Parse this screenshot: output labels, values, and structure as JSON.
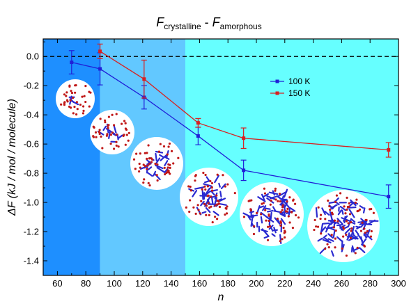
{
  "chart_data": {
    "type": "line",
    "title": {
      "part1_main": "F",
      "part1_sub": "crystalline",
      "separator": " - ",
      "part2_main": "F",
      "part2_sub": "amorphous"
    },
    "xlabel": "n",
    "ylabel": "ΔF (kJ / mol / molecule)",
    "xlim": [
      50,
      300
    ],
    "ylim": [
      -1.5,
      0.12
    ],
    "xticks": [
      60,
      80,
      100,
      120,
      140,
      160,
      180,
      200,
      220,
      240,
      260,
      280,
      300
    ],
    "yticks": [
      0.0,
      -0.2,
      -0.4,
      -0.6,
      -0.8,
      -1.0,
      -1.2,
      -1.4
    ],
    "ytick_labels": [
      "0.0",
      "-0.2",
      "-0.4",
      "-0.6",
      "-0.8",
      "-1.0",
      "-1.2",
      "-1.4"
    ],
    "reference_line": {
      "y": 0.0,
      "style": "dashed"
    },
    "background_regions": [
      {
        "x_range": [
          50,
          90
        ],
        "color": "#1e8fff"
      },
      {
        "x_range": [
          90,
          150
        ],
        "color": "#62c8ff"
      },
      {
        "x_range": [
          150,
          300
        ],
        "color": "#66ffff"
      }
    ],
    "legend_position": "upper-center",
    "series": [
      {
        "name": "100 K",
        "color": "#2020d8",
        "x": [
          70,
          90,
          121,
          159,
          191,
          293
        ],
        "y": [
          -0.04,
          -0.085,
          -0.28,
          -0.545,
          -0.78,
          -0.96
        ],
        "err": [
          0.08,
          0.11,
          0.08,
          0.06,
          0.07,
          0.08
        ]
      },
      {
        "name": "150 K",
        "color": "#d82020",
        "x": [
          90,
          121,
          159,
          191,
          293
        ],
        "y": [
          0.035,
          -0.155,
          -0.455,
          -0.56,
          -0.64
        ],
        "err": [
          0.05,
          0.13,
          0.03,
          0.07,
          0.05
        ]
      }
    ],
    "inset_images": [
      {
        "description": "molecular cluster snapshot",
        "n": 70
      },
      {
        "description": "molecular cluster snapshot",
        "n": 90
      },
      {
        "description": "molecular cluster snapshot",
        "n": 121
      },
      {
        "description": "molecular cluster snapshot",
        "n": 159
      },
      {
        "description": "molecular cluster snapshot",
        "n": 191
      },
      {
        "description": "molecular cluster snapshot",
        "n": 293
      }
    ]
  }
}
